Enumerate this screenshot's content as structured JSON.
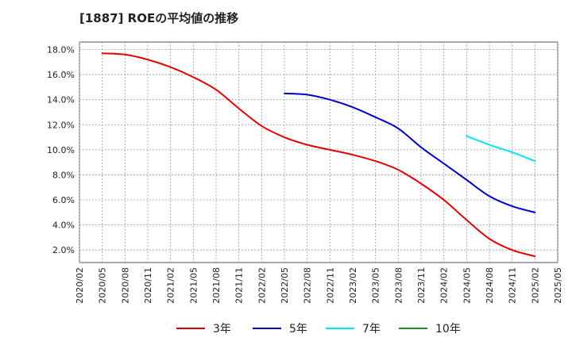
{
  "chart_data": {
    "type": "line",
    "title": "[1887]  ROEの平均値の推移",
    "xlabel": "",
    "ylabel": "",
    "ylim": [
      1.0,
      18.6
    ],
    "y_ticks": [
      "2.0%",
      "4.0%",
      "6.0%",
      "8.0%",
      "10.0%",
      "12.0%",
      "14.0%",
      "16.0%",
      "18.0%"
    ],
    "x_ticks": [
      "2020/02",
      "2020/05",
      "2020/08",
      "2020/11",
      "2021/02",
      "2021/05",
      "2021/08",
      "2021/11",
      "2022/02",
      "2022/05",
      "2022/08",
      "2022/11",
      "2023/02",
      "2023/05",
      "2023/08",
      "2023/11",
      "2024/02",
      "2024/05",
      "2024/08",
      "2024/11",
      "2025/02",
      "2025/05"
    ],
    "grid": true,
    "legend_position": "bottom",
    "series": [
      {
        "name": "3年",
        "color": "#e00000",
        "points": [
          [
            "2020/05",
            17.7
          ],
          [
            "2020/08",
            17.6
          ],
          [
            "2020/11",
            17.2
          ],
          [
            "2021/02",
            16.6
          ],
          [
            "2021/05",
            15.8
          ],
          [
            "2021/08",
            14.8
          ],
          [
            "2021/11",
            13.3
          ],
          [
            "2022/02",
            11.9
          ],
          [
            "2022/05",
            11.0
          ],
          [
            "2022/08",
            10.4
          ],
          [
            "2022/11",
            10.0
          ],
          [
            "2023/02",
            9.6
          ],
          [
            "2023/05",
            9.1
          ],
          [
            "2023/08",
            8.4
          ],
          [
            "2023/11",
            7.3
          ],
          [
            "2024/02",
            6.0
          ],
          [
            "2024/05",
            4.4
          ],
          [
            "2024/08",
            2.9
          ],
          [
            "2024/11",
            2.0
          ],
          [
            "2025/02",
            1.5
          ]
        ]
      },
      {
        "name": "5年",
        "color": "#0000c8",
        "points": [
          [
            "2022/05",
            14.5
          ],
          [
            "2022/08",
            14.4
          ],
          [
            "2022/11",
            14.0
          ],
          [
            "2023/02",
            13.4
          ],
          [
            "2023/05",
            12.6
          ],
          [
            "2023/08",
            11.7
          ],
          [
            "2023/11",
            10.2
          ],
          [
            "2024/02",
            8.9
          ],
          [
            "2024/05",
            7.6
          ],
          [
            "2024/08",
            6.3
          ],
          [
            "2024/11",
            5.5
          ],
          [
            "2025/02",
            5.0
          ]
        ]
      },
      {
        "name": "7年",
        "color": "#00e5ee",
        "points": [
          [
            "2024/05",
            11.1
          ],
          [
            "2024/08",
            10.4
          ],
          [
            "2024/11",
            9.8
          ],
          [
            "2025/02",
            9.1
          ]
        ]
      },
      {
        "name": "10年",
        "color": "#228b22",
        "points": []
      }
    ]
  }
}
